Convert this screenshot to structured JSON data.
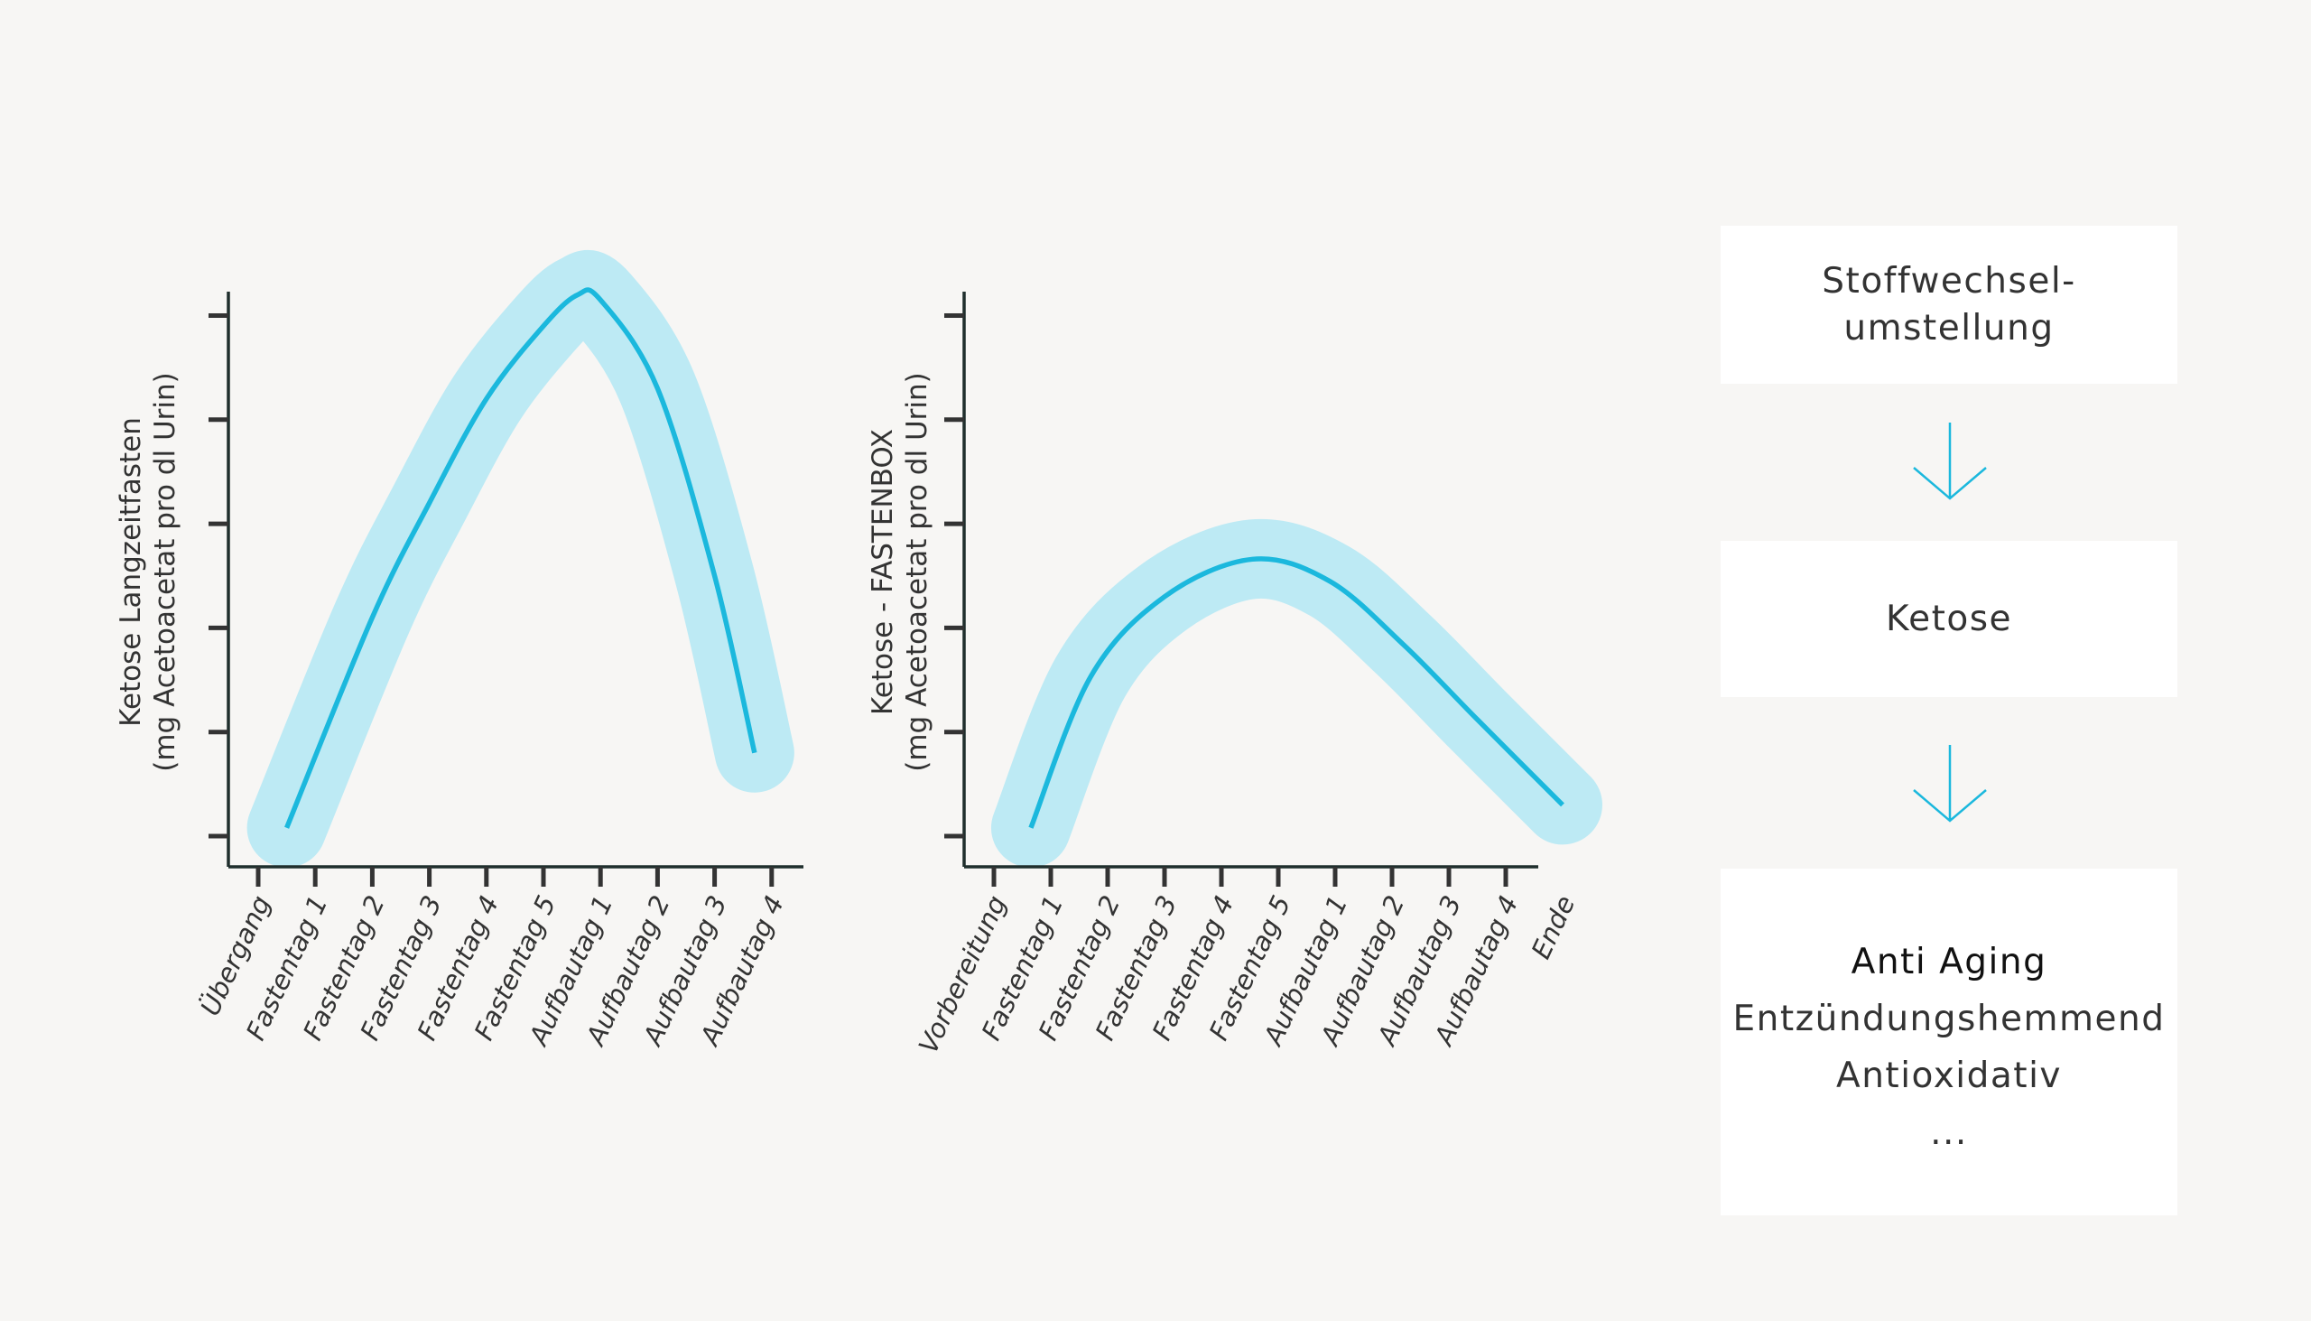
{
  "colors": {
    "line": "#1bb8dd",
    "band": "#bdeaf4",
    "axis": "#1f2e2c",
    "text": "#333333"
  },
  "chart_data": [
    {
      "type": "line",
      "title": "",
      "ylabel": [
        "Ketose Langzeitfasten",
        "(mg Acetoacetat pro dl Urin)"
      ],
      "xlabel": "",
      "categories": [
        "Übergang",
        "Fastentag 1",
        "Fastentag 2",
        "Fastentag 3",
        "Fastentag 4",
        "Fastentag 5",
        "Aufbautag 1",
        "Aufbautag 2",
        "Aufbautag 3",
        "Aufbautag 4"
      ],
      "y_ticks": 6,
      "ylim": [
        0,
        5
      ],
      "grid": false,
      "series": [
        {
          "name": "Ketose",
          "x": [
            0.5,
            2,
            3,
            4,
            5,
            5.6,
            6,
            7,
            8,
            8.7
          ],
          "values": [
            0.08,
            2.1,
            3.2,
            4.2,
            4.9,
            5.2,
            5.15,
            4.3,
            2.5,
            0.8
          ]
        }
      ]
    },
    {
      "type": "line",
      "title": "",
      "ylabel": [
        "Ketose - FASTENBOX",
        "(mg Acetoacetat pro dl Urin)"
      ],
      "xlabel": "",
      "categories": [
        "Vorbereitung",
        "Fastentag 1",
        "Fastentag 2",
        "Fastentag 3",
        "Fastentag 4",
        "Fastentag 5",
        "Aufbautag 1",
        "Aufbautag 2",
        "Aufbautag 3",
        "Aufbautag 4",
        "Ende"
      ],
      "y_ticks": 6,
      "ylim": [
        0,
        5
      ],
      "grid": false,
      "series": [
        {
          "name": "Ketose",
          "x": [
            0.65,
            1.7,
            3.0,
            4.55,
            5.9,
            7.2,
            8.5,
            10.0
          ],
          "values": [
            0.08,
            1.53,
            2.3,
            2.66,
            2.45,
            1.84,
            1.12,
            0.3
          ]
        }
      ]
    }
  ],
  "flow": {
    "step1": [
      "Stoffwechsel-",
      "umstellung"
    ],
    "step2": "Ketose",
    "step3": [
      "Anti Aging",
      "Entzündungshemmend",
      "Antioxidativ",
      "..."
    ]
  },
  "icons": {
    "arrow": "arrow-down-icon"
  }
}
